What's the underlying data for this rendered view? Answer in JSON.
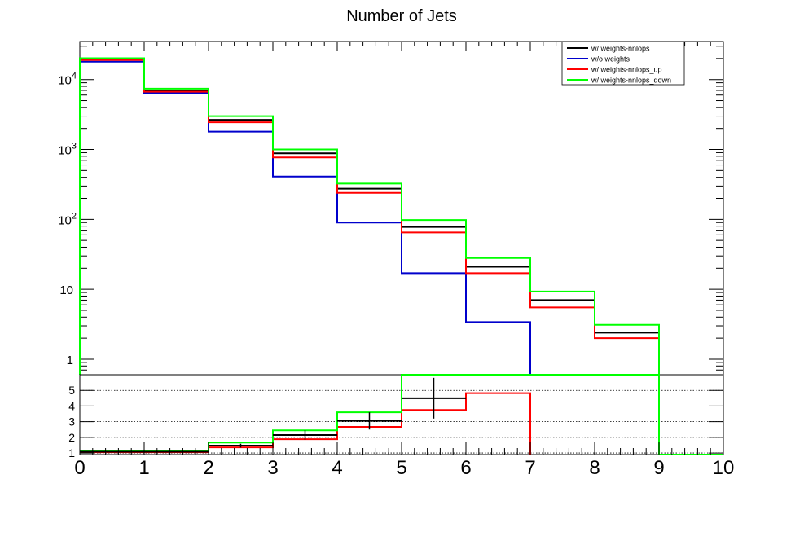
{
  "chart_data": [
    {
      "type": "step",
      "title": "Number of Jets",
      "xlim": [
        0,
        10
      ],
      "ylim": [
        0.6,
        35000
      ],
      "yscale": "log",
      "bin_edges": [
        0,
        1,
        2,
        3,
        4,
        5,
        6,
        7,
        8,
        9,
        10
      ],
      "y_tick_labels": [
        {
          "value": 1,
          "label": "1"
        },
        {
          "value": 10,
          "label": "10"
        },
        {
          "value": 100,
          "label": "10",
          "exponent": "2"
        },
        {
          "value": 1000,
          "label": "10",
          "exponent": "3"
        },
        {
          "value": 10000,
          "label": "10",
          "exponent": "4"
        }
      ],
      "legend": "top-right",
      "series": [
        {
          "name": "w/ weights-nnlops",
          "color": "#000000",
          "values": [
            19500,
            6900,
            2650,
            880,
            275,
            78,
            21,
            7,
            2.4,
            0
          ]
        },
        {
          "name": "w/o weights",
          "color": "#0000cc",
          "values": [
            18000,
            6400,
            1800,
            410,
            90,
            17,
            3.4,
            0,
            0,
            0
          ]
        },
        {
          "name": "w/ weights-nnlops_up",
          "color": "#ff0000",
          "values": [
            19000,
            6700,
            2450,
            770,
            240,
            65,
            17,
            5.5,
            2.0,
            0
          ]
        },
        {
          "name": "w/ weights-nnlops_down",
          "color": "#00ff00",
          "values": [
            20200,
            7400,
            3000,
            1000,
            325,
            98,
            28,
            9.3,
            3.1,
            0
          ]
        }
      ]
    },
    {
      "type": "step",
      "xlim": [
        0,
        10
      ],
      "ylim": [
        0.9,
        6.0
      ],
      "x_tick_labels": [
        "0",
        "1",
        "2",
        "3",
        "4",
        "5",
        "6",
        "7",
        "8",
        "9",
        "10"
      ],
      "y_tick_labels": [
        "1",
        "2",
        "3",
        "4",
        "5"
      ],
      "y_ticks": [
        1,
        2,
        3,
        4,
        5
      ],
      "grid": "horizontal dotted",
      "ratio_points": [
        {
          "x": 0.5,
          "y": 1.08,
          "err": 0.02
        },
        {
          "x": 1.5,
          "y": 1.08,
          "err": 0.02
        },
        {
          "x": 2.5,
          "y": 1.47,
          "err": 0.12
        },
        {
          "x": 3.5,
          "y": 2.15,
          "err": 0.3
        },
        {
          "x": 4.5,
          "y": 3.05,
          "err": 0.55
        },
        {
          "x": 5.5,
          "y": 4.5,
          "err": 1.3
        }
      ],
      "series": [
        {
          "name": "w/ weights-nnlops_up",
          "color": "#ff0000",
          "values": [
            1.05,
            1.05,
            1.36,
            1.88,
            2.67,
            3.75,
            4.82
          ]
        },
        {
          "name": "w/ weights-nnlops_down",
          "color": "#00ff00",
          "values": [
            1.12,
            1.15,
            1.67,
            2.45,
            3.6,
            6.0,
            6.0,
            6.0,
            6.0,
            0.9
          ]
        }
      ]
    }
  ]
}
